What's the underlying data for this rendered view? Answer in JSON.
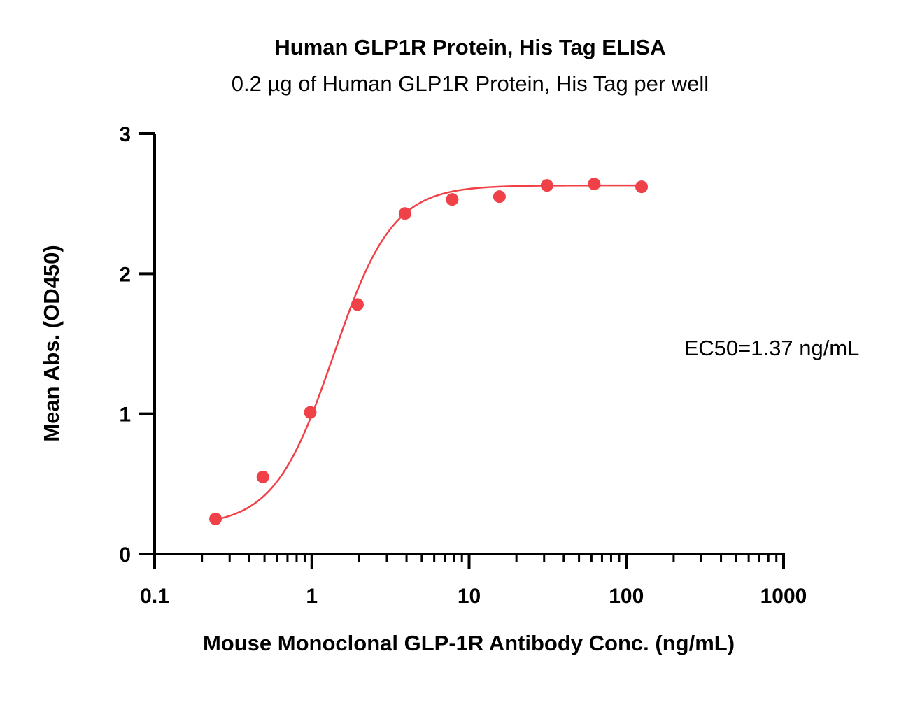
{
  "chart_data": {
    "type": "scatter",
    "title": "Human GLP1R Protein, His Tag ELISA",
    "subtitle": "0.2 µg of Human GLP1R Protein, His Tag per well",
    "xlabel": "Mouse Monoclonal GLP-1R Antibody Conc. (ng/mL)",
    "ylabel": "Mean Abs. (OD450)",
    "xscale": "log",
    "xlim": [
      0.1,
      1000
    ],
    "ylim": [
      0,
      3
    ],
    "xticks": [
      "0.1",
      "1",
      "10",
      "100",
      "1000"
    ],
    "yticks": [
      "0",
      "1",
      "2",
      "3"
    ],
    "grid": false,
    "color": "#f04048",
    "series": [
      {
        "x": [
          0.244,
          0.488,
          0.977,
          1.95,
          3.91,
          7.81,
          15.6,
          31.3,
          62.5,
          125
        ],
        "y": [
          0.25,
          0.55,
          1.01,
          1.78,
          2.43,
          2.53,
          2.55,
          2.63,
          2.64,
          2.62
        ]
      }
    ],
    "fit": {
      "bottom": 0.2,
      "top": 2.63,
      "ec50": 1.37,
      "hill": 2.3
    },
    "annotation": "EC50=1.37 ng/mL"
  }
}
